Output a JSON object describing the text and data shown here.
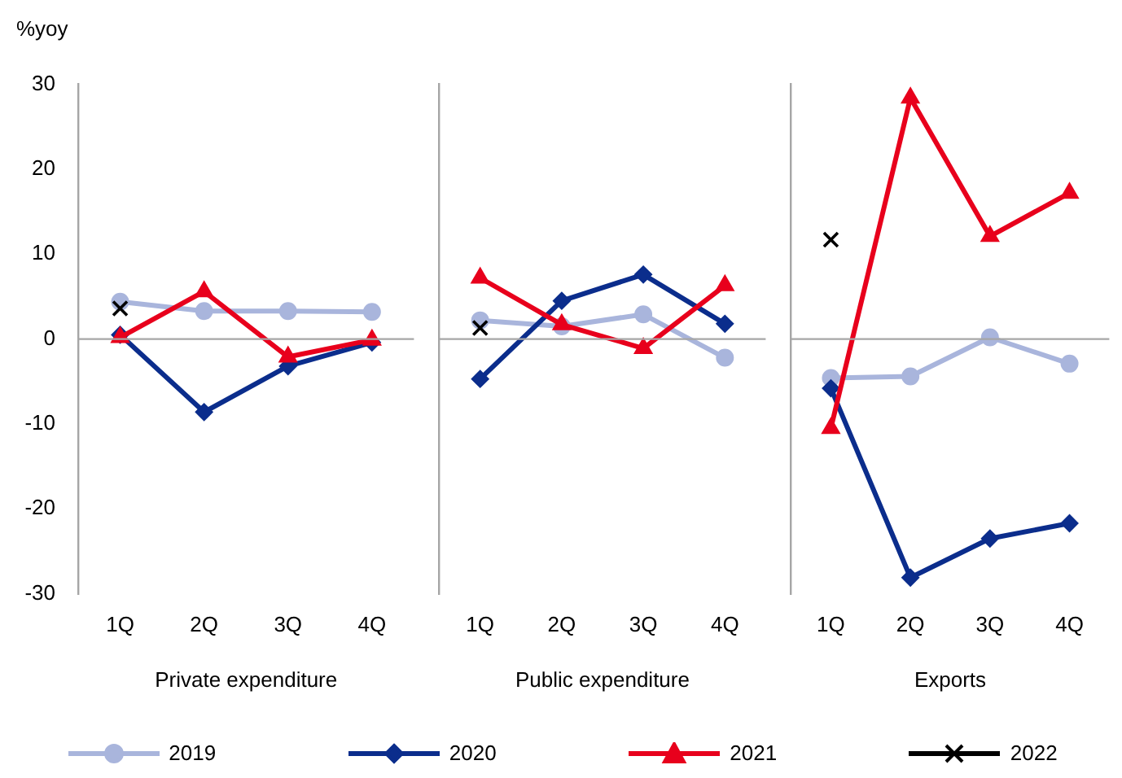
{
  "chart_data": [
    {
      "type": "line",
      "ylabel": "%yoy",
      "xlabel": "Private expenditure",
      "categories": [
        "1Q",
        "2Q",
        "3Q",
        "4Q"
      ],
      "ylim": [
        -30,
        30
      ],
      "yticks": [
        -30,
        -20,
        -10,
        0,
        10,
        20,
        30
      ],
      "grid": false,
      "legend": "bottom",
      "ref_lines": [
        {
          "axis": "y",
          "value": 0,
          "color": "#a6a6a6"
        }
      ],
      "series": [
        {
          "name": "2019",
          "color": "#a9b5dc",
          "marker": "circle",
          "values": [
            4.4,
            3.3,
            3.3,
            3.2
          ]
        },
        {
          "name": "2020",
          "color": "#0b2d8c",
          "marker": "diamond",
          "values": [
            0.5,
            -8.6,
            -3.2,
            -0.4
          ]
        },
        {
          "name": "2021",
          "color": "#e8001c",
          "marker": "triangle",
          "values": [
            0.2,
            5.6,
            -2.1,
            -0.1
          ]
        },
        {
          "name": "2022",
          "color": "#000000",
          "marker": "cross",
          "values": [
            3.6,
            null,
            null,
            null
          ]
        }
      ]
    },
    {
      "type": "line",
      "xlabel": "Public expenditure",
      "categories": [
        "1Q",
        "2Q",
        "3Q",
        "4Q"
      ],
      "ylim": [
        -30,
        30
      ],
      "yticks": [
        -30,
        -20,
        -10,
        0,
        10,
        20,
        30
      ],
      "grid": false,
      "tick_labels": "x",
      "ref_lines": [
        {
          "axis": "y",
          "value": 0,
          "color": "#a6a6a6"
        }
      ],
      "series": [
        {
          "name": "2019",
          "color": "#a9b5dc",
          "marker": "circle",
          "values": [
            2.2,
            1.5,
            2.9,
            -2.2
          ]
        },
        {
          "name": "2020",
          "color": "#0b2d8c",
          "marker": "diamond",
          "values": [
            -4.7,
            4.5,
            7.6,
            1.8
          ]
        },
        {
          "name": "2021",
          "color": "#e8001c",
          "marker": "triangle",
          "values": [
            7.2,
            1.7,
            -1.1,
            6.3
          ]
        },
        {
          "name": "2022",
          "color": "#000000",
          "marker": "cross",
          "values": [
            1.3,
            null,
            null,
            null
          ]
        }
      ]
    },
    {
      "type": "line",
      "xlabel": "Exports",
      "categories": [
        "1Q",
        "2Q",
        "3Q",
        "4Q"
      ],
      "ylim": [
        -30,
        30
      ],
      "yticks": [
        -30,
        -20,
        -10,
        0,
        10,
        20,
        30
      ],
      "grid": false,
      "tick_labels": "x",
      "ref_lines": [
        {
          "axis": "y",
          "value": 0,
          "color": "#a6a6a6"
        }
      ],
      "series": [
        {
          "name": "2019",
          "color": "#a9b5dc",
          "marker": "circle",
          "values": [
            -4.6,
            -4.4,
            0.2,
            -2.9
          ]
        },
        {
          "name": "2020",
          "color": "#0b2d8c",
          "marker": "diamond",
          "values": [
            -5.8,
            -28.1,
            -23.5,
            -21.7
          ]
        },
        {
          "name": "2021",
          "color": "#e8001c",
          "marker": "triangle",
          "values": [
            -10.5,
            28.4,
            12.1,
            17.2
          ]
        },
        {
          "name": "2022",
          "color": "#000000",
          "marker": "cross",
          "values": [
            11.7,
            null,
            null,
            null
          ]
        }
      ]
    }
  ]
}
